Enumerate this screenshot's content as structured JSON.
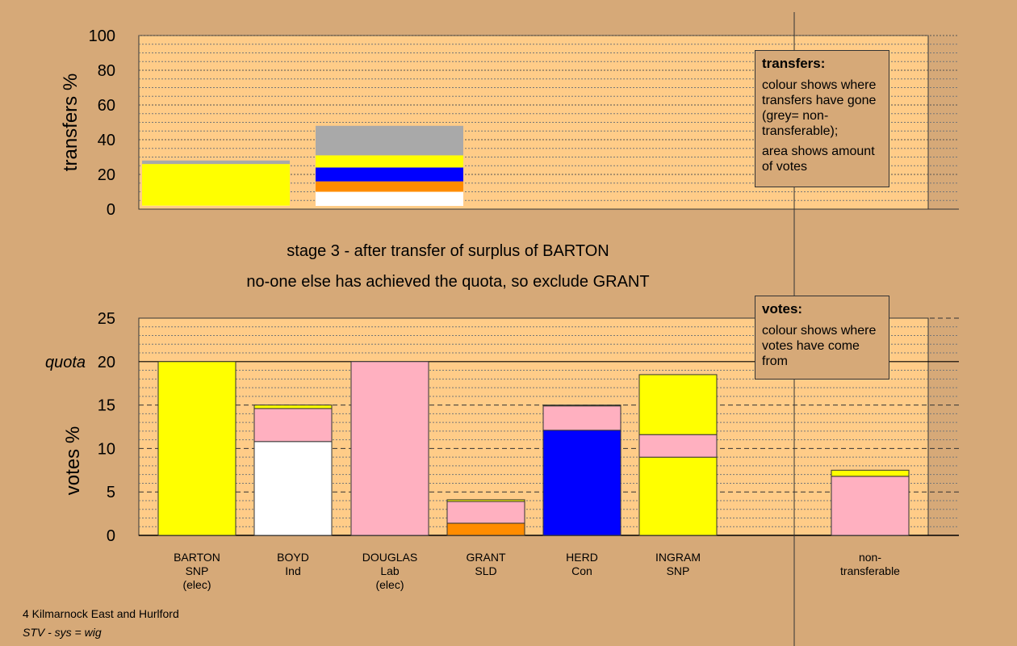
{
  "chart_data": [
    {
      "type": "bar",
      "stacked": true,
      "ylabel": "transfers %",
      "ylim": [
        0,
        100
      ],
      "yticks": [
        0,
        20,
        40,
        60,
        80,
        100
      ],
      "bars": [
        {
          "slot": 0,
          "segments": [
            {
              "color": "#ffffff",
              "value": 2
            },
            {
              "color": "#ffff00",
              "value": 24
            },
            {
              "color": "#a9a9a9",
              "value": 2
            }
          ]
        },
        {
          "slot": 1,
          "segments": [
            {
              "color": "#ffffff",
              "value": 10
            },
            {
              "color": "#ff8c00",
              "value": 6
            },
            {
              "color": "#0000ff",
              "value": 8
            },
            {
              "color": "#ffff00",
              "value": 7
            },
            {
              "color": "#a9a9a9",
              "value": 17
            }
          ]
        }
      ]
    },
    {
      "type": "bar",
      "stacked": true,
      "ylabel": "votes %",
      "ylim": [
        0,
        25
      ],
      "yticks": [
        0,
        5,
        10,
        15,
        20,
        25
      ],
      "quota": {
        "label": "quota",
        "value": 20
      },
      "categories": [
        {
          "lines": [
            "BARTON",
            "SNP",
            "(elec)"
          ]
        },
        {
          "lines": [
            "BOYD",
            "Ind"
          ]
        },
        {
          "lines": [
            "DOUGLAS",
            "Lab",
            "(elec)"
          ]
        },
        {
          "lines": [
            "GRANT",
            "SLD"
          ]
        },
        {
          "lines": [
            "HERD",
            "Con"
          ]
        },
        {
          "lines": [
            "INGRAM",
            "SNP"
          ]
        },
        {
          "lines": [
            "non-",
            "transferable"
          ]
        }
      ],
      "bars": [
        {
          "slot": 0,
          "segments": [
            {
              "color": "#ffff00",
              "value": 20
            }
          ]
        },
        {
          "slot": 1,
          "segments": [
            {
              "color": "#ffffff",
              "value": 10.8
            },
            {
              "color": "#ffb0c0",
              "value": 3.8
            },
            {
              "color": "#ffff00",
              "value": 0.4
            }
          ]
        },
        {
          "slot": 2,
          "segments": [
            {
              "color": "#ffb0c0",
              "value": 20
            }
          ]
        },
        {
          "slot": 3,
          "segments": [
            {
              "color": "#ff8c00",
              "value": 1.4
            },
            {
              "color": "#ffb0c0",
              "value": 2.5
            },
            {
              "color": "#ffff00",
              "value": 0.2
            }
          ]
        },
        {
          "slot": 4,
          "segments": [
            {
              "color": "#0000ff",
              "value": 12.1
            },
            {
              "color": "#ffb0c0",
              "value": 2.8
            },
            {
              "color": "#ffff00",
              "value": 0.1
            }
          ]
        },
        {
          "slot": 5,
          "segments": [
            {
              "color": "#ffff00",
              "value": 9
            },
            {
              "color": "#ffb0c0",
              "value": 2.6
            },
            {
              "color": "#ffff00",
              "value": 6.9
            }
          ]
        },
        {
          "slot": 6,
          "segments": [
            {
              "color": "#ffb0c0",
              "value": 6.8
            },
            {
              "color": "#ffff00",
              "value": 0.7
            }
          ]
        }
      ]
    }
  ],
  "stage_text": {
    "line1": "stage 3 - after transfer of surplus of BARTON",
    "line2": "no-one else has achieved the quota, so exclude GRANT"
  },
  "transfers_legend": {
    "title": "transfers:",
    "line1": "colour shows where transfers have gone (grey= non-transferable);",
    "line2": "area shows amount of votes"
  },
  "votes_legend": {
    "title": "votes:",
    "line1": "colour shows where votes have come from"
  },
  "footer": {
    "line1": "4 Kilmarnock East and Hurlford",
    "line2": "STV - sys = wig"
  },
  "colors": {
    "page_background": "#d6a978",
    "plot_background": "#ffcc88"
  }
}
